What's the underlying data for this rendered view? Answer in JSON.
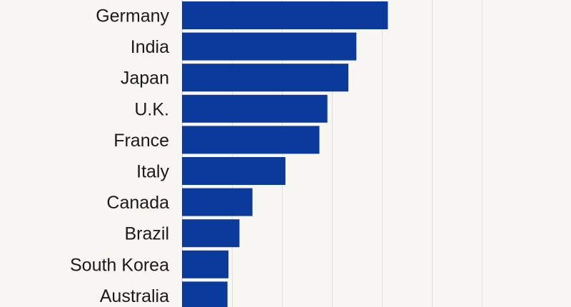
{
  "chart_data": {
    "type": "bar",
    "orientation": "horizontal",
    "categories": [
      "Germany",
      "India",
      "Japan",
      "U.K.",
      "France",
      "Italy",
      "Canada",
      "Brazil",
      "South Korea",
      "Australia"
    ],
    "values": [
      4.12,
      3.49,
      3.33,
      2.91,
      2.75,
      2.07,
      1.41,
      1.15,
      0.93,
      0.91
    ],
    "xlim": [
      0,
      6.75
    ],
    "grid": true,
    "bar_color": "#0a3a9c",
    "background": "#f8f6f3",
    "gridline_color": "#e2dfda"
  }
}
